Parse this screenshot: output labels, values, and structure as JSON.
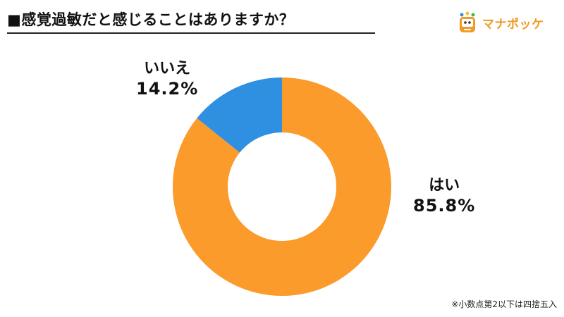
{
  "title": "■感覚過敏だと感じることはありますか？",
  "logo": {
    "text": "マナポッケ",
    "icon": "manapocke-logo-icon",
    "color": "#f19a24"
  },
  "footnote": "※小数点第2以下は四捨五入",
  "chart_data": {
    "type": "pie",
    "style": "donut",
    "title": "■感覚過敏だと感じることはありますか？",
    "unit": "%",
    "start": "12 o'clock, clockwise",
    "slices": [
      {
        "label": "はい",
        "value": 85.8,
        "display": "85.8%",
        "color": "#fb9b2c"
      },
      {
        "label": "いいえ",
        "value": 14.2,
        "display": "14.2%",
        "color": "#2f8fe0"
      }
    ]
  }
}
